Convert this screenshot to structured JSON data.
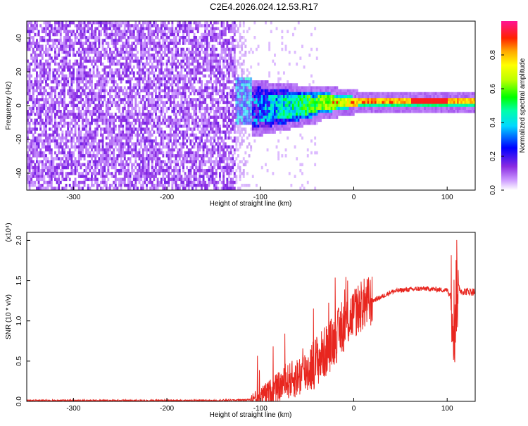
{
  "title": "C2E4.2026.024.12.53.R17",
  "colors": {
    "line": "#e8261f",
    "axis": "#000000",
    "colormap": [
      "#ffffff",
      "#d9b3ff",
      "#8a2be2",
      "#6a00ff",
      "#0000ff",
      "#00c8ff",
      "#00ffaa",
      "#00ff00",
      "#aaff00",
      "#ffff00",
      "#ffaa00",
      "#ff3300",
      "#ff0033",
      "#ff1493"
    ]
  },
  "chart_data": [
    {
      "type": "heatmap",
      "title": "C2E4.2026.024.12.53.R17",
      "xlabel": "Height of straight line (km)",
      "ylabel": "Frequency (Hz)",
      "xlim": [
        -350,
        130
      ],
      "ylim": [
        -50,
        50
      ],
      "x_ticks": [
        "-300",
        "-200",
        "-100",
        "0",
        "100"
      ],
      "y_ticks": [
        "40",
        "20",
        "0",
        "-20",
        "-40"
      ],
      "colorbar": {
        "label": "Normalized spectral amplitude",
        "range": [
          0.0,
          1.0
        ],
        "ticks": [
          "0.0",
          "0.2",
          "0.4",
          "0.6",
          "0.8"
        ]
      },
      "description_regions": [
        {
          "x_range": [
            -350,
            -125
          ],
          "freq_range": [
            -50,
            50
          ],
          "amplitude": 0.1
        },
        {
          "x_range": [
            -130,
            -30
          ],
          "freq_range": [
            -12,
            15
          ],
          "amplitude": 0.4
        },
        {
          "x_range": [
            -30,
            130
          ],
          "freq_range": [
            -1,
            3
          ],
          "amplitude": 0.8
        }
      ]
    },
    {
      "type": "line",
      "xlabel": "Height of straight line (km)",
      "ylabel": "SNR (10 * v/v)",
      "y_multiplier": "(x10⁴)",
      "xlim": [
        -350,
        130
      ],
      "ylim": [
        0,
        2.1
      ],
      "x_ticks": [
        "-300",
        "-200",
        "-100",
        "0",
        "100"
      ],
      "y_ticks": [
        "0.0",
        "0.5",
        "1.0",
        "1.5",
        "2.0"
      ],
      "series": [
        {
          "x": [
            -350,
            -250,
            -150,
            -110,
            -100,
            -90,
            -80,
            -70,
            -60,
            -50,
            -40,
            -30,
            -20,
            -10,
            0,
            10,
            20,
            30,
            40,
            50,
            60,
            70,
            80,
            90,
            100,
            105,
            108,
            110,
            115,
            130
          ],
          "values": [
            0.01,
            0.01,
            0.01,
            0.02,
            0.06,
            0.12,
            0.18,
            0.25,
            0.3,
            0.38,
            0.5,
            0.62,
            0.78,
            0.95,
            1.1,
            1.2,
            1.25,
            1.3,
            1.36,
            1.38,
            1.39,
            1.4,
            1.4,
            1.39,
            1.38,
            1.3,
            0.95,
            1.45,
            1.37,
            1.36
          ]
        }
      ]
    }
  ]
}
